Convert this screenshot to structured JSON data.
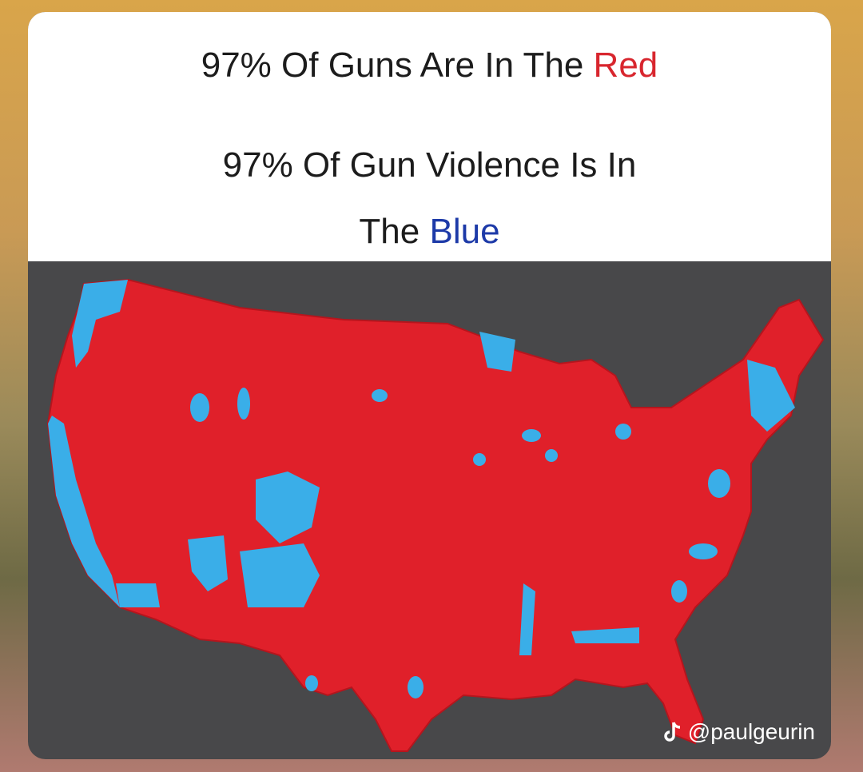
{
  "header": {
    "line1": {
      "text": "97% Of Guns Are In The",
      "highlight": "Red"
    },
    "line2": {
      "text": "97% Of Gun Violence Is In"
    },
    "line3": {
      "text": "The",
      "highlight": "Blue"
    }
  },
  "watermark": "@paulgeurin"
}
